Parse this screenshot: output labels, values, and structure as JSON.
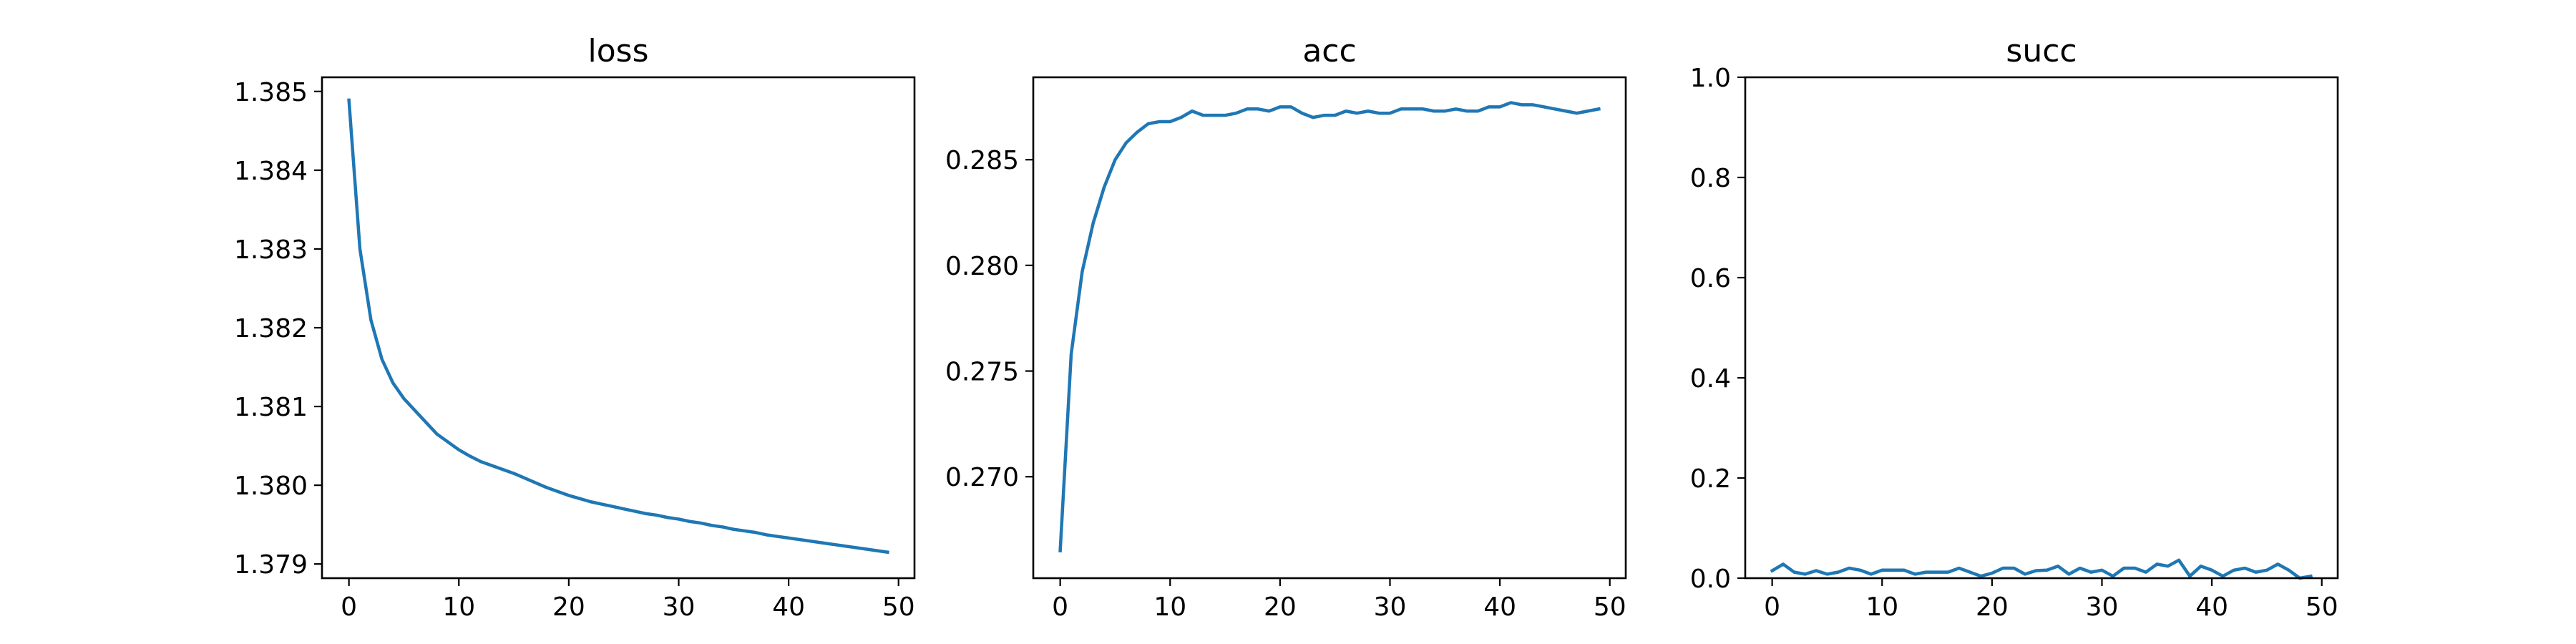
{
  "figure": {
    "line_color": "#1f77b4"
  },
  "chart_data": [
    {
      "type": "line",
      "title": "loss",
      "xlim": [
        -2.45,
        51.45
      ],
      "ylim": [
        1.37882,
        1.38518
      ],
      "xticks": [
        0,
        10,
        20,
        30,
        40,
        50
      ],
      "xtick_labels": [
        "0",
        "10",
        "20",
        "30",
        "40",
        "50"
      ],
      "yticks": [
        1.379,
        1.38,
        1.381,
        1.382,
        1.383,
        1.384,
        1.385
      ],
      "ytick_labels": [
        "1.379",
        "1.380",
        "1.381",
        "1.382",
        "1.383",
        "1.384",
        "1.385"
      ],
      "grid": false,
      "series": [
        {
          "x": [
            0,
            1,
            2,
            3,
            4,
            5,
            6,
            7,
            8,
            9,
            10,
            11,
            12,
            13,
            14,
            15,
            16,
            17,
            18,
            19,
            20,
            21,
            22,
            23,
            24,
            25,
            26,
            27,
            28,
            29,
            30,
            31,
            32,
            33,
            34,
            35,
            36,
            37,
            38,
            39,
            40,
            41,
            42,
            43,
            44,
            45,
            46,
            47,
            48,
            49
          ],
          "values": [
            1.38489,
            1.383,
            1.3821,
            1.3816,
            1.3813,
            1.3811,
            1.38095,
            1.3808,
            1.38065,
            1.38055,
            1.38045,
            1.38037,
            1.3803,
            1.38025,
            1.3802,
            1.38015,
            1.38009,
            1.38003,
            1.37997,
            1.37992,
            1.37987,
            1.37983,
            1.37979,
            1.37976,
            1.37973,
            1.3797,
            1.37967,
            1.37964,
            1.37962,
            1.37959,
            1.37957,
            1.37954,
            1.37952,
            1.37949,
            1.37947,
            1.37944,
            1.37942,
            1.3794,
            1.37937,
            1.37935,
            1.37933,
            1.37931,
            1.37929,
            1.37927,
            1.37925,
            1.37923,
            1.37921,
            1.37919,
            1.37917,
            1.37915
          ]
        }
      ]
    },
    {
      "type": "line",
      "title": "acc",
      "xlim": [
        -2.45,
        51.45
      ],
      "ylim": [
        0.2652,
        0.2889
      ],
      "xticks": [
        0,
        10,
        20,
        30,
        40,
        50
      ],
      "xtick_labels": [
        "0",
        "10",
        "20",
        "30",
        "40",
        "50"
      ],
      "yticks": [
        0.27,
        0.275,
        0.28,
        0.285
      ],
      "ytick_labels": [
        "0.270",
        "0.275",
        "0.280",
        "0.285"
      ],
      "grid": false,
      "series": [
        {
          "x": [
            0,
            1,
            2,
            3,
            4,
            5,
            6,
            7,
            8,
            9,
            10,
            11,
            12,
            13,
            14,
            15,
            16,
            17,
            18,
            19,
            20,
            21,
            22,
            23,
            24,
            25,
            26,
            27,
            28,
            29,
            30,
            31,
            32,
            33,
            34,
            35,
            36,
            37,
            38,
            39,
            40,
            41,
            42,
            43,
            44,
            45,
            46,
            47,
            48,
            49
          ],
          "values": [
            0.2665,
            0.2758,
            0.2797,
            0.282,
            0.2837,
            0.285,
            0.2858,
            0.2863,
            0.2867,
            0.2868,
            0.2868,
            0.287,
            0.2873,
            0.2871,
            0.2871,
            0.2871,
            0.2872,
            0.2874,
            0.2874,
            0.2873,
            0.2875,
            0.2875,
            0.2872,
            0.287,
            0.2871,
            0.2871,
            0.2873,
            0.2872,
            0.2873,
            0.2872,
            0.2872,
            0.2874,
            0.2874,
            0.2874,
            0.2873,
            0.2873,
            0.2874,
            0.2873,
            0.2873,
            0.2875,
            0.2875,
            0.2877,
            0.2876,
            0.2876,
            0.2875,
            0.2874,
            0.2873,
            0.2872,
            0.2873,
            0.2874
          ]
        }
      ]
    },
    {
      "type": "line",
      "title": "succ",
      "xlim": [
        -2.45,
        51.45
      ],
      "ylim": [
        0.0,
        1.0
      ],
      "xticks": [
        0,
        10,
        20,
        30,
        40,
        50
      ],
      "xtick_labels": [
        "0",
        "10",
        "20",
        "30",
        "40",
        "50"
      ],
      "yticks": [
        0.0,
        0.2,
        0.4,
        0.6,
        0.8,
        1.0
      ],
      "ytick_labels": [
        "0.0",
        "0.2",
        "0.4",
        "0.6",
        "0.8",
        "1.0"
      ],
      "grid": false,
      "series": [
        {
          "x": [
            0,
            1,
            2,
            3,
            4,
            5,
            6,
            7,
            8,
            9,
            10,
            11,
            12,
            13,
            14,
            15,
            16,
            17,
            18,
            19,
            20,
            21,
            22,
            23,
            24,
            25,
            26,
            27,
            28,
            29,
            30,
            31,
            32,
            33,
            34,
            35,
            36,
            37,
            38,
            39,
            40,
            41,
            42,
            43,
            44,
            45,
            46,
            47,
            48,
            49
          ],
          "values": [
            0.015,
            0.028,
            0.012,
            0.008,
            0.015,
            0.008,
            0.012,
            0.02,
            0.016,
            0.008,
            0.016,
            0.016,
            0.016,
            0.008,
            0.012,
            0.012,
            0.012,
            0.02,
            0.012,
            0.004,
            0.01,
            0.02,
            0.02,
            0.008,
            0.015,
            0.016,
            0.024,
            0.008,
            0.02,
            0.012,
            0.016,
            0.004,
            0.02,
            0.02,
            0.012,
            0.028,
            0.024,
            0.036,
            0.004,
            0.024,
            0.016,
            0.004,
            0.016,
            0.02,
            0.012,
            0.016,
            0.028,
            0.016,
            0.0,
            0.004
          ]
        }
      ]
    }
  ]
}
